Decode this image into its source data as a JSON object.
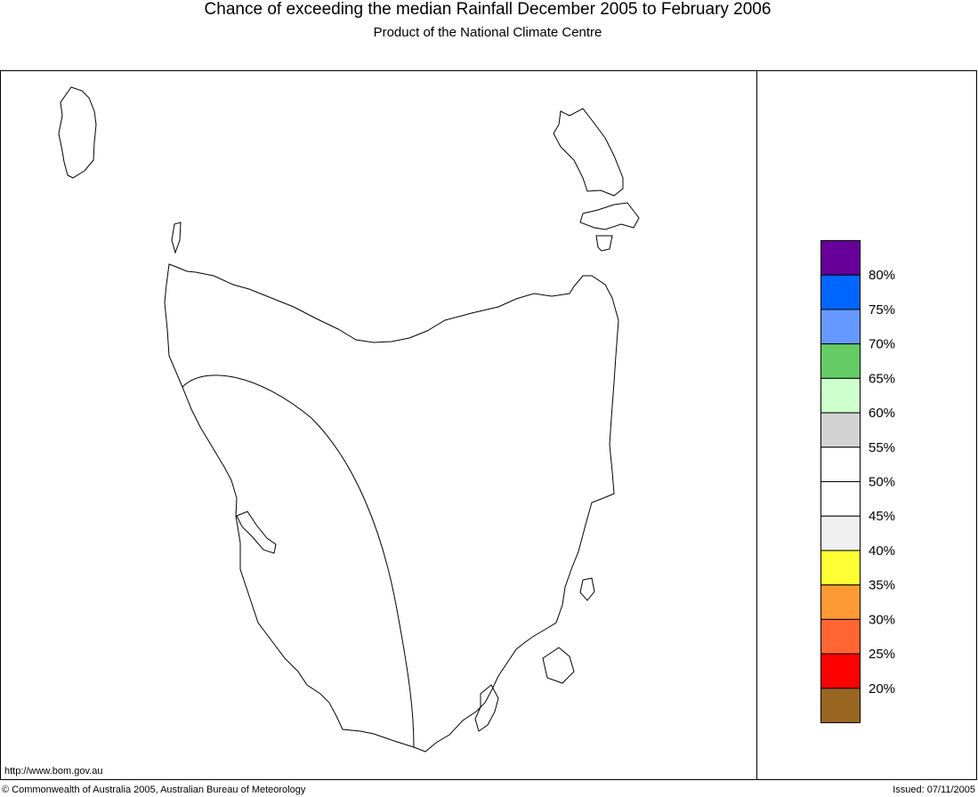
{
  "header": {
    "title": "Chance of exceeding the median Rainfall December 2005 to February 2006",
    "subtitle": "Product of the National Climate Centre"
  },
  "legend": {
    "colors": [
      "#660099",
      "#0066ff",
      "#6699ff",
      "#66cc66",
      "#ccffcc",
      "#d3d3d3",
      "#ffffff",
      "#ffffff",
      "#f0f0f0",
      "#ffff33",
      "#ff9933",
      "#ff6633",
      "#ff0000",
      "#996622"
    ],
    "labels": [
      "80%",
      "75%",
      "70%",
      "65%",
      "60%",
      "55%",
      "50%",
      "45%",
      "40%",
      "35%",
      "30%",
      "25%",
      "20%"
    ]
  },
  "footer": {
    "url": "http://www.bom.gov.au",
    "copyright": "© Commonwealth of Australia 2005, Australian Bureau of Meteorology",
    "issued": "Issued: 07/11/2005"
  }
}
